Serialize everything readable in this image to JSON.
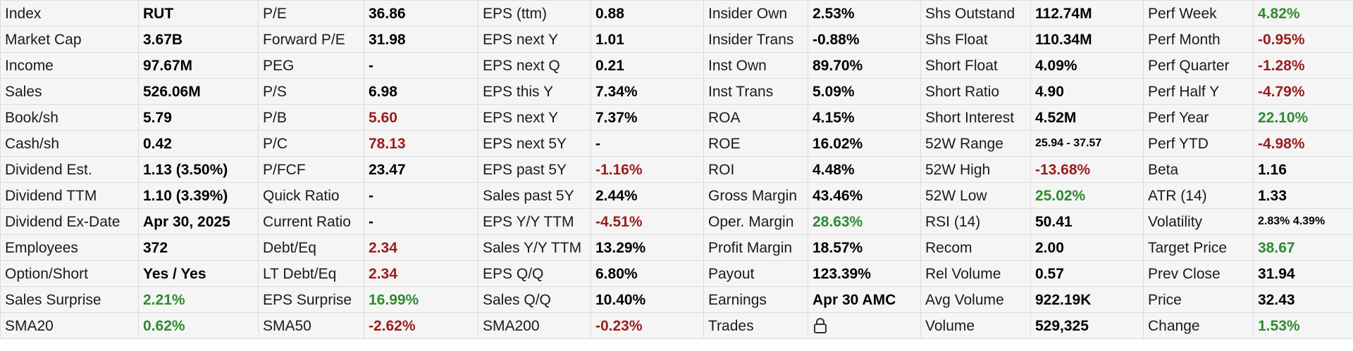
{
  "colors": {
    "positive": "#2e8b2e",
    "negative": "#9c1c1c",
    "neutral": "#000000"
  },
  "columns": [
    [
      {
        "label": "Index",
        "value": "RUT",
        "tone": "neutral"
      },
      {
        "label": "Market Cap",
        "value": "3.67B",
        "tone": "neutral"
      },
      {
        "label": "Income",
        "value": "97.67M",
        "tone": "neutral"
      },
      {
        "label": "Sales",
        "value": "526.06M",
        "tone": "neutral"
      },
      {
        "label": "Book/sh",
        "value": "5.79",
        "tone": "neutral"
      },
      {
        "label": "Cash/sh",
        "value": "0.42",
        "tone": "neutral"
      },
      {
        "label": "Dividend Est.",
        "value": "1.13 (3.50%)",
        "tone": "neutral"
      },
      {
        "label": "Dividend TTM",
        "value": "1.10 (3.39%)",
        "tone": "neutral"
      },
      {
        "label": "Dividend Ex-Date",
        "value": "Apr 30, 2025",
        "tone": "neutral"
      },
      {
        "label": "Employees",
        "value": "372",
        "tone": "neutral"
      },
      {
        "label": "Option/Short",
        "value": "Yes / Yes",
        "tone": "neutral"
      },
      {
        "label": "Sales Surprise",
        "value": "2.21%",
        "tone": "positive"
      },
      {
        "label": "SMA20",
        "value": "0.62%",
        "tone": "positive"
      }
    ],
    [
      {
        "label": "P/E",
        "value": "36.86",
        "tone": "neutral"
      },
      {
        "label": "Forward P/E",
        "value": "31.98",
        "tone": "neutral"
      },
      {
        "label": "PEG",
        "value": "-",
        "tone": "neutral"
      },
      {
        "label": "P/S",
        "value": "6.98",
        "tone": "neutral"
      },
      {
        "label": "P/B",
        "value": "5.60",
        "tone": "negative"
      },
      {
        "label": "P/C",
        "value": "78.13",
        "tone": "negative"
      },
      {
        "label": "P/FCF",
        "value": "23.47",
        "tone": "neutral"
      },
      {
        "label": "Quick Ratio",
        "value": "-",
        "tone": "neutral"
      },
      {
        "label": "Current Ratio",
        "value": "-",
        "tone": "neutral"
      },
      {
        "label": "Debt/Eq",
        "value": "2.34",
        "tone": "negative"
      },
      {
        "label": "LT Debt/Eq",
        "value": "2.34",
        "tone": "negative"
      },
      {
        "label": "EPS Surprise",
        "value": "16.99%",
        "tone": "positive"
      },
      {
        "label": "SMA50",
        "value": "-2.62%",
        "tone": "negative"
      }
    ],
    [
      {
        "label": "EPS (ttm)",
        "value": "0.88",
        "tone": "neutral"
      },
      {
        "label": "EPS next Y",
        "value": "1.01",
        "tone": "neutral"
      },
      {
        "label": "EPS next Q",
        "value": "0.21",
        "tone": "neutral"
      },
      {
        "label": "EPS this Y",
        "value": "7.34%",
        "tone": "neutral"
      },
      {
        "label": "EPS next Y",
        "value": "7.37%",
        "tone": "neutral"
      },
      {
        "label": "EPS next 5Y",
        "value": "-",
        "tone": "neutral"
      },
      {
        "label": "EPS past 5Y",
        "value": "-1.16%",
        "tone": "negative"
      },
      {
        "label": "Sales past 5Y",
        "value": "2.44%",
        "tone": "neutral"
      },
      {
        "label": "EPS Y/Y TTM",
        "value": "-4.51%",
        "tone": "negative"
      },
      {
        "label": "Sales Y/Y TTM",
        "value": "13.29%",
        "tone": "neutral"
      },
      {
        "label": "EPS Q/Q",
        "value": "6.80%",
        "tone": "neutral"
      },
      {
        "label": "Sales Q/Q",
        "value": "10.40%",
        "tone": "neutral"
      },
      {
        "label": "SMA200",
        "value": "-0.23%",
        "tone": "negative"
      }
    ],
    [
      {
        "label": "Insider Own",
        "value": "2.53%",
        "tone": "neutral"
      },
      {
        "label": "Insider Trans",
        "value": "-0.88%",
        "tone": "neutral"
      },
      {
        "label": "Inst Own",
        "value": "89.70%",
        "tone": "neutral"
      },
      {
        "label": "Inst Trans",
        "value": "5.09%",
        "tone": "neutral"
      },
      {
        "label": "ROA",
        "value": "4.15%",
        "tone": "neutral"
      },
      {
        "label": "ROE",
        "value": "16.02%",
        "tone": "neutral"
      },
      {
        "label": "ROI",
        "value": "4.48%",
        "tone": "neutral"
      },
      {
        "label": "Gross Margin",
        "value": "43.46%",
        "tone": "neutral"
      },
      {
        "label": "Oper. Margin",
        "value": "28.63%",
        "tone": "positive"
      },
      {
        "label": "Profit Margin",
        "value": "18.57%",
        "tone": "neutral"
      },
      {
        "label": "Payout",
        "value": "123.39%",
        "tone": "neutral"
      },
      {
        "label": "Earnings",
        "value": "Apr 30 AMC",
        "tone": "neutral"
      },
      {
        "label": "Trades",
        "value": "",
        "tone": "neutral",
        "icon": "lock-icon"
      }
    ],
    [
      {
        "label": "Shs Outstand",
        "value": "112.74M",
        "tone": "neutral"
      },
      {
        "label": "Shs Float",
        "value": "110.34M",
        "tone": "neutral"
      },
      {
        "label": "Short Float",
        "value": "4.09%",
        "tone": "neutral"
      },
      {
        "label": "Short Ratio",
        "value": "4.90",
        "tone": "neutral"
      },
      {
        "label": "Short Interest",
        "value": "4.52M",
        "tone": "neutral"
      },
      {
        "label": "52W Range",
        "value": "25.94 - 37.57",
        "tone": "neutral",
        "small": true
      },
      {
        "label": "52W High",
        "value": "-13.68%",
        "tone": "negative"
      },
      {
        "label": "52W Low",
        "value": "25.02%",
        "tone": "positive"
      },
      {
        "label": "RSI (14)",
        "value": "50.41",
        "tone": "neutral"
      },
      {
        "label": "Recom",
        "value": "2.00",
        "tone": "neutral"
      },
      {
        "label": "Rel Volume",
        "value": "0.57",
        "tone": "neutral"
      },
      {
        "label": "Avg Volume",
        "value": "922.19K",
        "tone": "neutral"
      },
      {
        "label": "Volume",
        "value": "529,325",
        "tone": "neutral"
      }
    ],
    [
      {
        "label": "Perf Week",
        "value": "4.82%",
        "tone": "positive"
      },
      {
        "label": "Perf Month",
        "value": "-0.95%",
        "tone": "negative"
      },
      {
        "label": "Perf Quarter",
        "value": "-1.28%",
        "tone": "negative"
      },
      {
        "label": "Perf Half Y",
        "value": "-4.79%",
        "tone": "negative"
      },
      {
        "label": "Perf Year",
        "value": "22.10%",
        "tone": "positive"
      },
      {
        "label": "Perf YTD",
        "value": "-4.98%",
        "tone": "negative"
      },
      {
        "label": "Beta",
        "value": "1.16",
        "tone": "neutral"
      },
      {
        "label": "ATR (14)",
        "value": "1.33",
        "tone": "neutral"
      },
      {
        "label": "Volatility",
        "value": "2.83% 4.39%",
        "tone": "neutral",
        "small": true
      },
      {
        "label": "Target Price",
        "value": "38.67",
        "tone": "positive"
      },
      {
        "label": "Prev Close",
        "value": "31.94",
        "tone": "neutral"
      },
      {
        "label": "Price",
        "value": "32.43",
        "tone": "neutral"
      },
      {
        "label": "Change",
        "value": "1.53%",
        "tone": "positive"
      }
    ]
  ]
}
